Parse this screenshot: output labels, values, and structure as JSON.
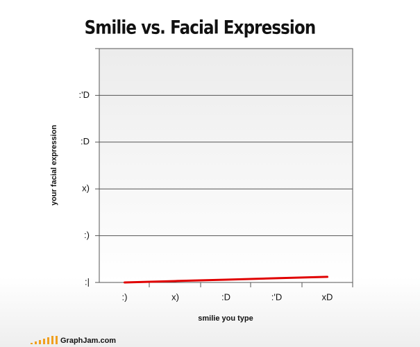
{
  "chart_data": {
    "type": "line",
    "title": "Smilie vs. Facial Expression",
    "x_label": "smilie you type",
    "y_label": "your facial expression",
    "categories": [
      ":)",
      "x)",
      ":D",
      ":'D",
      "xD"
    ],
    "series": [
      {
        "name": "facial expression",
        "color": "#e00000",
        "values": [
          0,
          0.03,
          0.06,
          0.09,
          0.12
        ]
      }
    ],
    "ylim": [
      0,
      5
    ],
    "yticks": [
      {
        "value": 0,
        "label": ":|"
      },
      {
        "value": 1,
        "label": ":)"
      },
      {
        "value": 2,
        "label": "x)"
      },
      {
        "value": 3,
        "label": ":D"
      },
      {
        "value": 4,
        "label": ":'D"
      }
    ],
    "grid": true,
    "watermark": "GraphJam.com"
  }
}
